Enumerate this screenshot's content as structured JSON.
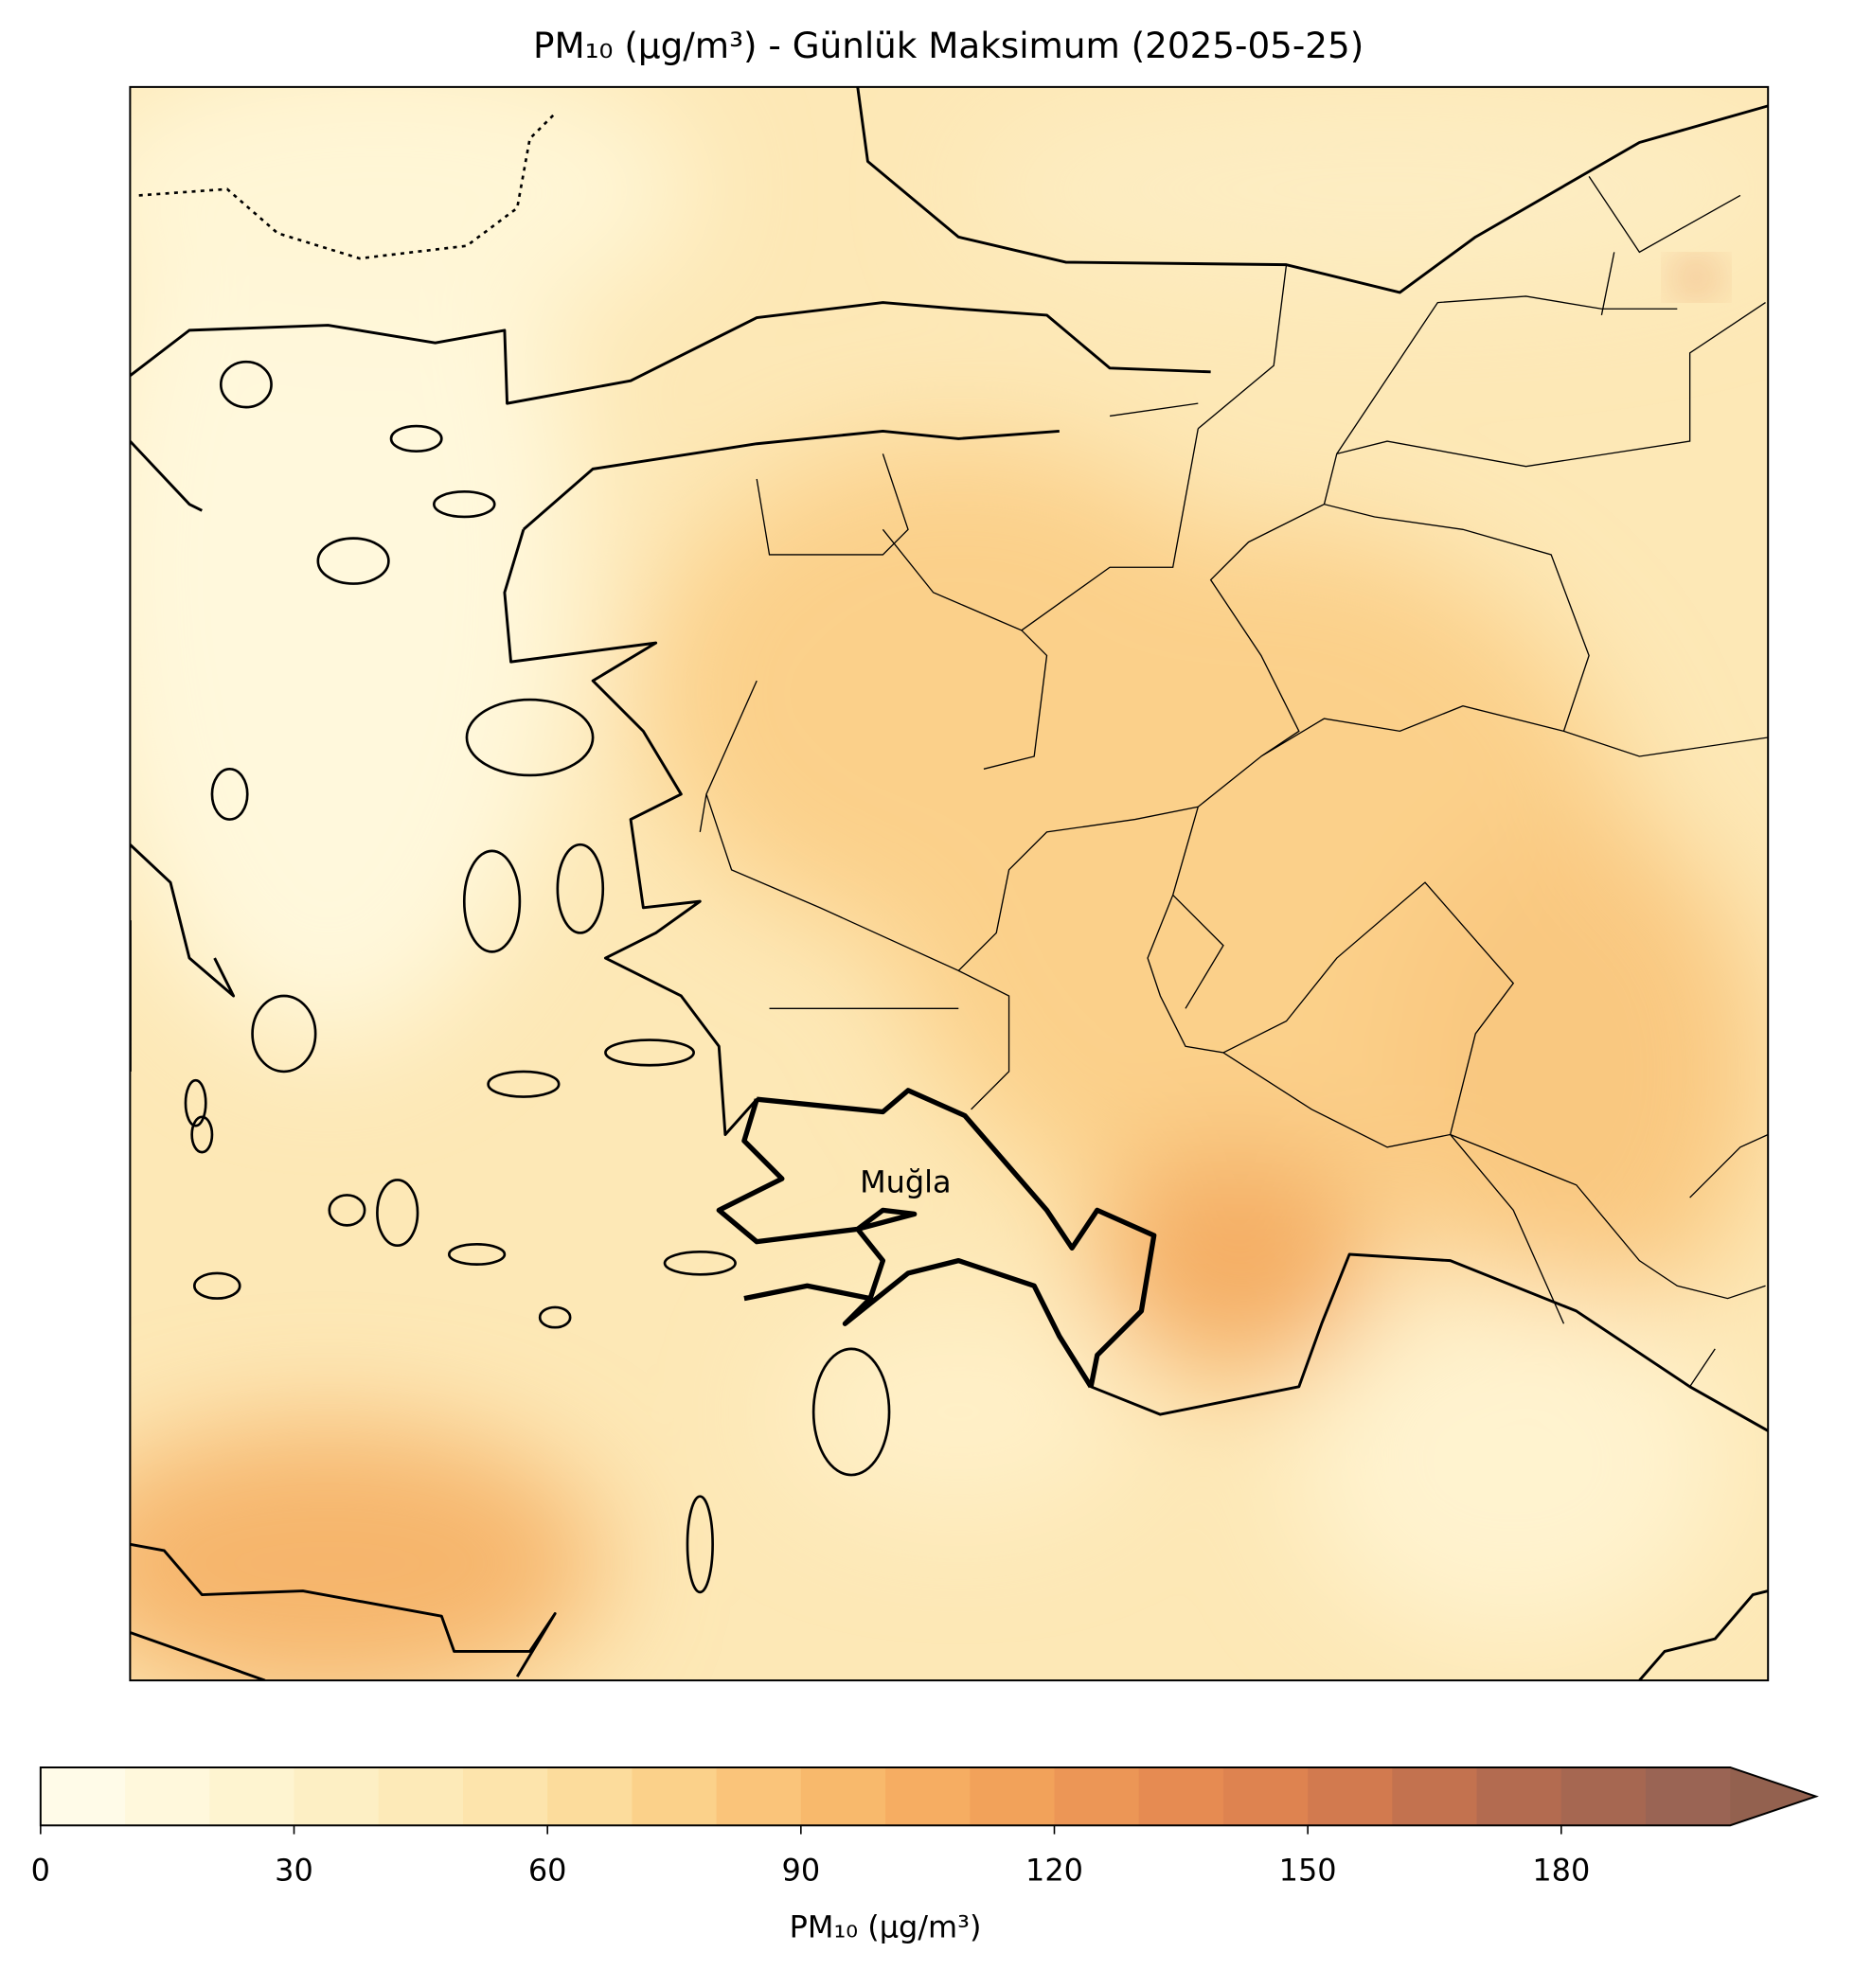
{
  "chart_data": {
    "type": "contour-map",
    "title": "PM₁₀ (µg/m³) - Günlük Maksimum (2025-05-25)",
    "annotations": [
      {
        "text": "Muğla"
      }
    ],
    "colorbar": {
      "label": "PM₁₀ (µg/m³)",
      "levels": [
        0,
        10,
        20,
        30,
        40,
        50,
        60,
        70,
        80,
        90,
        100,
        110,
        120,
        130,
        140,
        150,
        160,
        170,
        180,
        190,
        200
      ],
      "colors": [
        "#fffbe8",
        "#fff8dc",
        "#fef4d0",
        "#fdefc4",
        "#fdeab8",
        "#fde4ac",
        "#fcdc9c",
        "#fbd18a",
        "#fac47a",
        "#f8b96c",
        "#f6ad62",
        "#f2a25a",
        "#ec9656",
        "#e68b52",
        "#de8350",
        "#d27a4f",
        "#c3724f",
        "#b36b50",
        "#a66751",
        "#9a6454"
      ],
      "over_color": "#93614f",
      "extend": "max",
      "ticks": [
        0,
        30,
        60,
        90,
        120,
        150,
        180
      ]
    }
  }
}
